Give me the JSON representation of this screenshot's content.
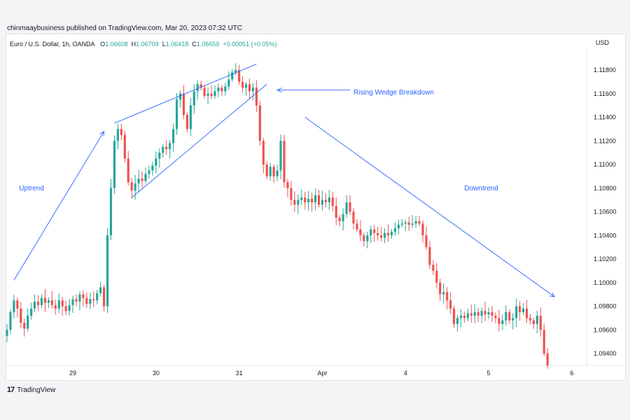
{
  "header": {
    "published": "chinmaaybusiness published on TradingView.com, Mar 20, 2023 07:32 UTC"
  },
  "legend": {
    "symbol": "Euro / U.S. Dollar, 1h, OANDA",
    "o_label": "O",
    "o": "1.06608",
    "h_label": "H",
    "h": "1.06709",
    "l_label": "L",
    "l": "1.06418",
    "c_label": "C",
    "c": "1.06659",
    "change": "+0.00051 (+0.05%)"
  },
  "footer": {
    "brand": "TradingView",
    "logo": "17"
  },
  "colors": {
    "up": "#26a69a",
    "down": "#ef5350",
    "annotation": "#2962ff"
  },
  "chart_data": {
    "type": "candlestick",
    "currency_label": "USD",
    "ylim": [
      1.0925,
      1.1185
    ],
    "y_ticks": [
      "1.11800",
      "1.11600",
      "1.11400",
      "1.11200",
      "1.11000",
      "1.10800",
      "1.10600",
      "1.10400",
      "1.10200",
      "1.10000",
      "1.09800",
      "1.09600",
      "1.09400"
    ],
    "y_tick_values": [
      1.118,
      1.116,
      1.114,
      1.112,
      1.11,
      1.108,
      1.106,
      1.104,
      1.102,
      1.1,
      1.098,
      1.096,
      1.094
    ],
    "x_ticks": [
      {
        "label": "29",
        "bar": 19
      },
      {
        "label": "30",
        "bar": 43
      },
      {
        "label": "31",
        "bar": 67
      },
      {
        "label": "Apr",
        "bar": 91
      },
      {
        "label": "4",
        "bar": 115
      },
      {
        "label": "5",
        "bar": 139
      },
      {
        "label": "6",
        "bar": 163
      }
    ],
    "trend_path": [
      [
        0,
        1.096
      ],
      [
        1,
        1.0975
      ],
      [
        2,
        1.0985
      ],
      [
        3,
        1.0978
      ],
      [
        4,
        1.0966
      ],
      [
        5,
        1.0961
      ],
      [
        6,
        1.0972
      ],
      [
        7,
        1.0978
      ],
      [
        8,
        1.0984
      ],
      [
        9,
        1.0981
      ],
      [
        10,
        1.0987
      ],
      [
        11,
        1.0983
      ],
      [
        12,
        1.0985
      ],
      [
        13,
        1.0981
      ],
      [
        14,
        1.0978
      ],
      [
        15,
        1.0985
      ],
      [
        16,
        1.098
      ],
      [
        17,
        1.0976
      ],
      [
        18,
        1.0981
      ],
      [
        19,
        1.0986
      ],
      [
        20,
        1.0984
      ],
      [
        21,
        1.099
      ],
      [
        22,
        1.0987
      ],
      [
        23,
        1.0982
      ],
      [
        24,
        1.0986
      ],
      [
        25,
        1.0985
      ],
      [
        26,
        1.0991
      ],
      [
        27,
        1.0996
      ],
      [
        28,
        1.098
      ],
      [
        29,
        1.104
      ],
      [
        30,
        1.108
      ],
      [
        31,
        1.112
      ],
      [
        32,
        1.113
      ],
      [
        33,
        1.1125
      ],
      [
        34,
        1.1105
      ],
      [
        35,
        1.1085
      ],
      [
        36,
        1.1078
      ],
      [
        37,
        1.1084
      ],
      [
        38,
        1.1088
      ],
      [
        39,
        1.1086
      ],
      [
        40,
        1.1092
      ],
      [
        41,
        1.1095
      ],
      [
        42,
        1.1099
      ],
      [
        43,
        1.1105
      ],
      [
        44,
        1.111
      ],
      [
        45,
        1.1115
      ],
      [
        46,
        1.1113
      ],
      [
        47,
        1.1118
      ],
      [
        48,
        1.113
      ],
      [
        49,
        1.1155
      ],
      [
        50,
        1.116
      ],
      [
        51,
        1.1142
      ],
      [
        52,
        1.113
      ],
      [
        53,
        1.115
      ],
      [
        54,
        1.1162
      ],
      [
        55,
        1.1168
      ],
      [
        56,
        1.1165
      ],
      [
        57,
        1.1158
      ],
      [
        58,
        1.116
      ],
      [
        59,
        1.1158
      ],
      [
        60,
        1.1162
      ],
      [
        61,
        1.1165
      ],
      [
        62,
        1.1162
      ],
      [
        63,
        1.1166
      ],
      [
        64,
        1.1172
      ],
      [
        65,
        1.1178
      ],
      [
        66,
        1.118
      ],
      [
        67,
        1.117
      ],
      [
        68,
        1.1165
      ],
      [
        69,
        1.1168
      ],
      [
        70,
        1.1162
      ],
      [
        71,
        1.1165
      ],
      [
        72,
        1.115
      ],
      [
        73,
        1.112
      ],
      [
        74,
        1.11
      ],
      [
        75,
        1.109
      ],
      [
        76,
        1.1098
      ],
      [
        77,
        1.109
      ],
      [
        78,
        1.1095
      ],
      [
        79,
        1.112
      ],
      [
        80,
        1.1085
      ],
      [
        81,
        1.108
      ],
      [
        82,
        1.107
      ],
      [
        83,
        1.1066
      ],
      [
        84,
        1.107
      ],
      [
        85,
        1.1072
      ],
      [
        86,
        1.1068
      ],
      [
        87,
        1.1071
      ],
      [
        88,
        1.1068
      ],
      [
        89,
        1.1074
      ],
      [
        90,
        1.1066
      ],
      [
        91,
        1.107
      ],
      [
        92,
        1.1068
      ],
      [
        93,
        1.1072
      ],
      [
        94,
        1.1065
      ],
      [
        95,
        1.1055
      ],
      [
        96,
        1.1052
      ],
      [
        97,
        1.1058
      ],
      [
        98,
        1.1068
      ],
      [
        99,
        1.106
      ],
      [
        100,
        1.105
      ],
      [
        101,
        1.1045
      ],
      [
        102,
        1.104
      ],
      [
        103,
        1.1035
      ],
      [
        104,
        1.104
      ],
      [
        105,
        1.1045
      ],
      [
        106,
        1.1042
      ],
      [
        107,
        1.104
      ],
      [
        108,
        1.1038
      ],
      [
        109,
        1.1042
      ],
      [
        110,
        1.104
      ],
      [
        111,
        1.1043
      ],
      [
        112,
        1.1046
      ],
      [
        113,
        1.1049
      ],
      [
        114,
        1.105
      ],
      [
        115,
        1.1051
      ],
      [
        116,
        1.1049
      ],
      [
        117,
        1.105
      ],
      [
        118,
        1.1052
      ],
      [
        119,
        1.105
      ],
      [
        120,
        1.104
      ],
      [
        121,
        1.103
      ],
      [
        122,
        1.1015
      ],
      [
        123,
        1.101
      ],
      [
        124,
        1.1
      ],
      [
        125,
        1.099
      ],
      [
        126,
        1.0992
      ],
      [
        127,
        1.0985
      ],
      [
        128,
        1.0978
      ],
      [
        129,
        1.0965
      ],
      [
        130,
        1.097
      ],
      [
        131,
        1.0972
      ],
      [
        132,
        1.097
      ],
      [
        133,
        1.0974
      ],
      [
        134,
        1.0972
      ],
      [
        135,
        1.0975
      ],
      [
        136,
        1.0972
      ],
      [
        137,
        1.0976
      ],
      [
        138,
        1.0973
      ],
      [
        139,
        1.0975
      ],
      [
        140,
        1.0972
      ],
      [
        141,
        1.097
      ],
      [
        142,
        1.0965
      ],
      [
        143,
        1.0968
      ],
      [
        144,
        1.0975
      ],
      [
        145,
        1.0968
      ],
      [
        146,
        1.097
      ],
      [
        147,
        1.098
      ],
      [
        148,
        1.0975
      ],
      [
        149,
        1.0978
      ],
      [
        150,
        1.097
      ],
      [
        151,
        1.0968
      ],
      [
        152,
        1.0965
      ],
      [
        153,
        1.0972
      ],
      [
        154,
        1.096
      ],
      [
        155,
        1.094
      ],
      [
        156,
        1.093
      ]
    ],
    "bar_count": 157,
    "annotations": [
      {
        "text": "Uptrend",
        "type": "label",
        "bar": 3.5,
        "y": 1.108
      },
      {
        "text": "Rising Wedge Breakdown",
        "type": "label",
        "bar": 100,
        "y": 1.1161
      },
      {
        "text": "Downtrend",
        "type": "label",
        "bar": 132,
        "y": 1.108
      }
    ],
    "lines": [
      {
        "name": "uptrend-arrow",
        "from": [
          2,
          1.1002
        ],
        "to": [
          28,
          1.1128
        ],
        "arrow": true
      },
      {
        "name": "wedge-upper",
        "from": [
          31,
          1.1135
        ],
        "to": [
          72,
          1.1185
        ],
        "arrow": false
      },
      {
        "name": "wedge-lower",
        "from": [
          36,
          1.1072
        ],
        "to": [
          75,
          1.1168
        ],
        "arrow": false
      },
      {
        "name": "breakdown-arrow",
        "from": [
          99,
          1.1163
        ],
        "to": [
          78,
          1.1163
        ],
        "arrow": true
      },
      {
        "name": "downtrend-arrow",
        "from": [
          86,
          1.114
        ],
        "to": [
          158,
          1.0988
        ],
        "arrow": true
      }
    ]
  }
}
